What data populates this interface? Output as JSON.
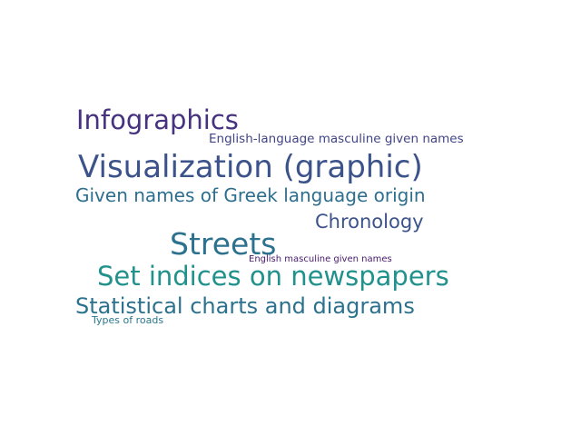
{
  "words": [
    {
      "id": "w-infographics",
      "text": "Infographics",
      "color": "#46327e"
    },
    {
      "id": "w-eng-lang",
      "text": "English-language masculine given names",
      "color": "#414487"
    },
    {
      "id": "w-visualization",
      "text": "Visualization (graphic)",
      "color": "#3b528b"
    },
    {
      "id": "w-greek",
      "text": "Given names of Greek language origin",
      "color": "#2e6e8e"
    },
    {
      "id": "w-chronology",
      "text": "Chronology",
      "color": "#3b528b"
    },
    {
      "id": "w-streets",
      "text": "Streets",
      "color": "#2c728e"
    },
    {
      "id": "w-eng-masc",
      "text": "English masculine given names",
      "color": "#481a6c"
    },
    {
      "id": "w-set-indices",
      "text": "Set indices on newspapers",
      "color": "#21918c"
    },
    {
      "id": "w-stat",
      "text": "Statistical charts and diagrams",
      "color": "#2c728e"
    },
    {
      "id": "w-roads",
      "text": "Types of roads",
      "color": "#2a788e"
    }
  ]
}
